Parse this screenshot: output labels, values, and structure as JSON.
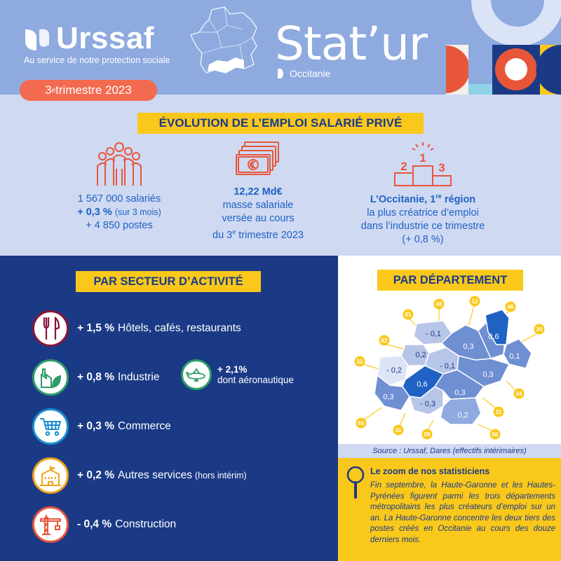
{
  "header": {
    "brand": "Urssaf",
    "tagline": "Au service de notre protection sociale",
    "quarter_num": "3",
    "quarter_sup": "e",
    "quarter_rest": " trimestre 2023",
    "title": "Stat’ur",
    "region": "Occitanie"
  },
  "emploi": {
    "title": "ÉVOLUTION DE L’EMPLOI SALARIÉ PRIVÉ",
    "salaries": {
      "line1": "1 567 000 salariés",
      "pct": "+ 0,3 %",
      "pct_note": "(sur 3 mois)",
      "line3": "+ 4 850 postes"
    },
    "masse": {
      "amount": "12,22 Md€",
      "line2": "masse salariale",
      "line3": "versée au cours",
      "line4_pre": "du 3",
      "line4_sup": "e",
      "line4_post": " trimestre 2023"
    },
    "region": {
      "bold_pre": "L’Occitanie, 1",
      "bold_sup": "re",
      "bold_post": " région",
      "line2": "la plus créatrice d’emploi",
      "line3": "dans l’industrie ce trimestre",
      "line4": "(+ 0,8 %)"
    },
    "podium": [
      "2",
      "1",
      "3"
    ]
  },
  "secteur": {
    "title": "PAR SECTEUR D’ACTIVITÉ",
    "items": [
      {
        "pct": "+ 1,5 %",
        "label": "Hôtels, cafés, restaurants",
        "note": "",
        "color": "#8a1538"
      },
      {
        "pct": "+ 0,8 %",
        "label": "Industrie",
        "note": "",
        "color": "#2e9d6a"
      },
      {
        "pct": "+ 0,3 %",
        "label": "Commerce",
        "note": "",
        "color": "#1b8ed1"
      },
      {
        "pct": "+ 0,2 %",
        "label": "Autres services",
        "note": "(hors intérim)",
        "color": "#f0a31c"
      },
      {
        "pct": "- 0,4 %",
        "label": "Construction",
        "note": "",
        "color": "#e8563a"
      }
    ],
    "aero": {
      "pct": "+ 2,1%",
      "label": "dont aéronautique"
    }
  },
  "dept": {
    "title": "PAR DÉPARTEMENT",
    "codes": [
      "46",
      "12",
      "48",
      "81",
      "30",
      "82",
      "32",
      "34",
      "11",
      "65",
      "31",
      "09",
      "66"
    ],
    "values": [
      "- 0,1",
      "0,6",
      "0,3",
      "0,2",
      "- 0,1",
      "0,1",
      "- 0,2",
      "0,3",
      "0,6",
      "0,3",
      "- 0,3",
      "0,3",
      "0,2"
    ],
    "source": "Source : Urssaf, Dares (effectifs intérimaires)"
  },
  "zoom": {
    "title": "Le zoom de nos statisticiens",
    "text": "Fin septembre, la Haute-Garonne et les Hautes-Pyrénées figurent parmi les trois départements métropolitains les plus créateurs d’emploi sur un an. La Haute-Garonne concentre les deux tiers des postes créés en Occitanie au cours des douze derniers mois."
  },
  "icons": [
    "urssaf-logo-icon",
    "people-icon",
    "banknotes-icon",
    "podium-icon",
    "cutlery-icon",
    "factory-leaf-icon",
    "airplane-icon",
    "cart-icon",
    "building-icon",
    "crane-icon",
    "magnifier-icon"
  ]
}
